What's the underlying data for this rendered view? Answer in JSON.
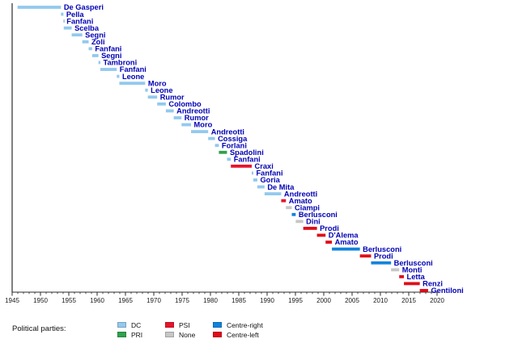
{
  "chart_data": {
    "type": "timeline",
    "title": "",
    "xlabel": "",
    "ylabel": "",
    "x_axis": {
      "min": 1945,
      "max": 2020,
      "major_tick_step": 5,
      "minor_tick_step": 1,
      "tick_labels": [
        "1945",
        "1950",
        "1955",
        "1960",
        "1965",
        "1970",
        "1975",
        "1980",
        "1985",
        "1990",
        "1995",
        "2000",
        "2005",
        "2010",
        "2015",
        "2020"
      ]
    },
    "entries": [
      {
        "name": "De Gasperi",
        "party": "DC",
        "start": 1945.95,
        "end": 1953.62
      },
      {
        "name": "Pella",
        "party": "DC",
        "start": 1953.62,
        "end": 1954.05
      },
      {
        "name": "Fanfani",
        "party": "DC",
        "start": 1954.05,
        "end": 1954.11
      },
      {
        "name": "Scelba",
        "party": "DC",
        "start": 1954.11,
        "end": 1955.51
      },
      {
        "name": "Segni",
        "party": "DC",
        "start": 1955.51,
        "end": 1957.38
      },
      {
        "name": "Zoli",
        "party": "DC",
        "start": 1957.38,
        "end": 1958.5
      },
      {
        "name": "Fanfani",
        "party": "DC",
        "start": 1958.5,
        "end": 1959.12
      },
      {
        "name": "Segni",
        "party": "DC",
        "start": 1959.12,
        "end": 1960.23
      },
      {
        "name": "Tambroni",
        "party": "DC",
        "start": 1960.23,
        "end": 1960.57
      },
      {
        "name": "Fanfani",
        "party": "DC",
        "start": 1960.57,
        "end": 1963.47
      },
      {
        "name": "Leone",
        "party": "DC",
        "start": 1963.47,
        "end": 1963.92
      },
      {
        "name": "Moro",
        "party": "DC",
        "start": 1963.92,
        "end": 1968.48
      },
      {
        "name": "Leone",
        "party": "DC",
        "start": 1968.48,
        "end": 1968.95
      },
      {
        "name": "Rumor",
        "party": "DC",
        "start": 1968.95,
        "end": 1970.6
      },
      {
        "name": "Colombo",
        "party": "DC",
        "start": 1970.6,
        "end": 1972.13
      },
      {
        "name": "Andreotti",
        "party": "DC",
        "start": 1972.13,
        "end": 1973.52
      },
      {
        "name": "Rumor",
        "party": "DC",
        "start": 1973.52,
        "end": 1974.9
      },
      {
        "name": "Moro",
        "party": "DC",
        "start": 1974.9,
        "end": 1976.58
      },
      {
        "name": "Andreotti",
        "party": "DC",
        "start": 1976.58,
        "end": 1979.6
      },
      {
        "name": "Cossiga",
        "party": "DC",
        "start": 1979.6,
        "end": 1980.8
      },
      {
        "name": "Forlani",
        "party": "DC",
        "start": 1980.8,
        "end": 1981.49
      },
      {
        "name": "Spadolini",
        "party": "PRI",
        "start": 1981.49,
        "end": 1982.92
      },
      {
        "name": "Fanfani",
        "party": "DC",
        "start": 1982.92,
        "end": 1983.6
      },
      {
        "name": "Craxi",
        "party": "PSI",
        "start": 1983.6,
        "end": 1987.29
      },
      {
        "name": "Fanfani",
        "party": "DC",
        "start": 1987.29,
        "end": 1987.57
      },
      {
        "name": "Goria",
        "party": "DC",
        "start": 1987.57,
        "end": 1988.28
      },
      {
        "name": "De Mita",
        "party": "DC",
        "start": 1988.28,
        "end": 1989.55
      },
      {
        "name": "Andreotti",
        "party": "DC",
        "start": 1989.55,
        "end": 1992.49
      },
      {
        "name": "Amato",
        "party": "PSI",
        "start": 1992.49,
        "end": 1993.32
      },
      {
        "name": "Ciampi",
        "party": "None",
        "start": 1993.32,
        "end": 1994.36
      },
      {
        "name": "Berlusconi",
        "party": "Centre-right",
        "start": 1994.36,
        "end": 1995.05
      },
      {
        "name": "Dini",
        "party": "None",
        "start": 1995.05,
        "end": 1996.38
      },
      {
        "name": "Prodi",
        "party": "Centre-left",
        "start": 1996.38,
        "end": 1998.8
      },
      {
        "name": "D'Alema",
        "party": "Centre-left",
        "start": 1998.8,
        "end": 2000.32
      },
      {
        "name": "Amato",
        "party": "Centre-left",
        "start": 2000.32,
        "end": 2001.44
      },
      {
        "name": "Berlusconi",
        "party": "Centre-right",
        "start": 2001.44,
        "end": 2006.38
      },
      {
        "name": "Prodi",
        "party": "Centre-left",
        "start": 2006.38,
        "end": 2008.35
      },
      {
        "name": "Berlusconi",
        "party": "Centre-right",
        "start": 2008.35,
        "end": 2011.88
      },
      {
        "name": "Monti",
        "party": "None",
        "start": 2011.88,
        "end": 2013.32
      },
      {
        "name": "Letta",
        "party": "Centre-left",
        "start": 2013.32,
        "end": 2014.15
      },
      {
        "name": "Renzi",
        "party": "Centre-left",
        "start": 2014.15,
        "end": 2016.95
      },
      {
        "name": "Gentiloni",
        "party": "Centre-left",
        "start": 2016.95,
        "end": 2018.42
      }
    ],
    "party_colors": {
      "DC": "#92C9EE",
      "PRI": "#2FA14C",
      "PSI": "#E8132B",
      "None": "#C6C6C6",
      "Centre-right": "#1183DC",
      "Centre-left": "#E00C18"
    },
    "name_label_color": "#0000B4",
    "axis_color": "#2B2B2B",
    "legend_position": "bottom"
  },
  "legend": {
    "title": "Political parties:",
    "items": [
      {
        "label": "DC",
        "color": "#92C9EE"
      },
      {
        "label": "PRI",
        "color": "#2FA14C"
      },
      {
        "label": "PSI",
        "color": "#E8132B"
      },
      {
        "label": "None",
        "color": "#C6C6C6"
      },
      {
        "label": "Centre-right",
        "color": "#1183DC"
      },
      {
        "label": "Centre-left",
        "color": "#E00C18"
      }
    ]
  }
}
